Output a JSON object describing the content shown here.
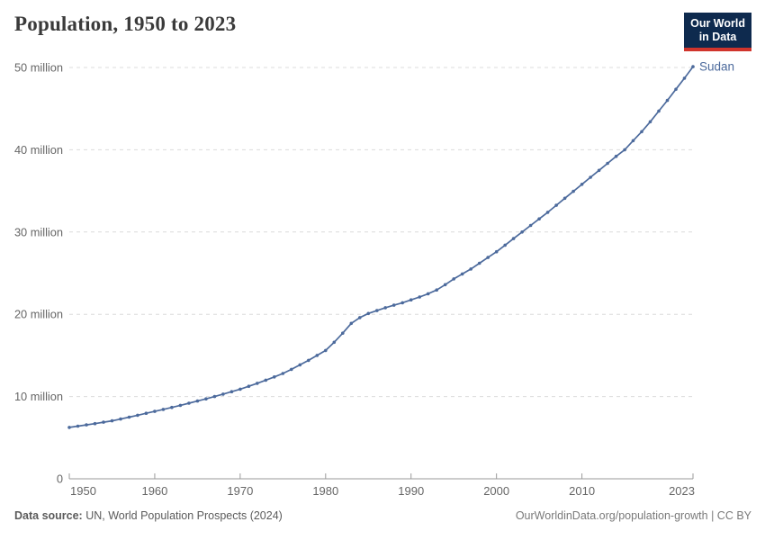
{
  "header": {
    "title": "Population, 1950 to 2023",
    "logo": {
      "line1": "Our World",
      "line2": "in Data"
    }
  },
  "chart_data": {
    "type": "line",
    "title": "Population, 1950 to 2023",
    "units": "millions of people",
    "x": [
      1950,
      1951,
      1952,
      1953,
      1954,
      1955,
      1956,
      1957,
      1958,
      1959,
      1960,
      1961,
      1962,
      1963,
      1964,
      1965,
      1966,
      1967,
      1968,
      1969,
      1970,
      1971,
      1972,
      1973,
      1974,
      1975,
      1976,
      1977,
      1978,
      1979,
      1980,
      1981,
      1982,
      1983,
      1984,
      1985,
      1986,
      1987,
      1988,
      1989,
      1990,
      1991,
      1992,
      1993,
      1994,
      1995,
      1996,
      1997,
      1998,
      1999,
      2000,
      2001,
      2002,
      2003,
      2004,
      2005,
      2006,
      2007,
      2008,
      2009,
      2010,
      2011,
      2012,
      2013,
      2014,
      2015,
      2016,
      2017,
      2018,
      2019,
      2020,
      2021,
      2022,
      2023
    ],
    "series": [
      {
        "name": "Sudan",
        "values": [
          6.25,
          6.4,
          6.55,
          6.71,
          6.88,
          7.05,
          7.27,
          7.49,
          7.72,
          7.96,
          8.2,
          8.44,
          8.68,
          8.93,
          9.19,
          9.45,
          9.72,
          10.0,
          10.29,
          10.59,
          10.9,
          11.25,
          11.61,
          11.99,
          12.39,
          12.8,
          13.3,
          13.85,
          14.4,
          15.0,
          15.6,
          16.6,
          17.7,
          18.9,
          19.6,
          20.1,
          20.45,
          20.8,
          21.1,
          21.4,
          21.75,
          22.1,
          22.5,
          22.95,
          23.6,
          24.3,
          24.9,
          25.5,
          26.2,
          26.9,
          27.6,
          28.4,
          29.2,
          30.0,
          30.8,
          31.6,
          32.4,
          33.25,
          34.1,
          34.95,
          35.8,
          36.65,
          37.5,
          38.35,
          39.2,
          40.0,
          41.1,
          42.2,
          43.4,
          44.7,
          46.0,
          47.35,
          48.7,
          50.1
        ]
      }
    ],
    "xlabel": "",
    "ylabel": "",
    "xlim": [
      1950,
      2023
    ],
    "ylim": [
      0,
      50
    ],
    "grid": "horizontal-dashed",
    "legend_position": "end-of-line-label",
    "y_ticks": [
      {
        "value": 0,
        "label": "0"
      },
      {
        "value": 10,
        "label": "10 million"
      },
      {
        "value": 20,
        "label": "20 million"
      },
      {
        "value": 30,
        "label": "30 million"
      },
      {
        "value": 40,
        "label": "40 million"
      },
      {
        "value": 50,
        "label": "50 million"
      }
    ],
    "x_ticks": [
      1950,
      1960,
      1970,
      1980,
      1990,
      2000,
      2010,
      2023
    ],
    "colors": {
      "line": "#4c6a9c",
      "entity_label": "#4c6a9c",
      "grid": "#dcdcdc",
      "axis": "#9a9a9a",
      "tick_text": "#666666"
    }
  },
  "footer": {
    "datasource_label": "Data source:",
    "datasource_value": " UN, World Population Prospects (2024)",
    "credit": "OurWorldinData.org/population-growth | CC BY"
  }
}
